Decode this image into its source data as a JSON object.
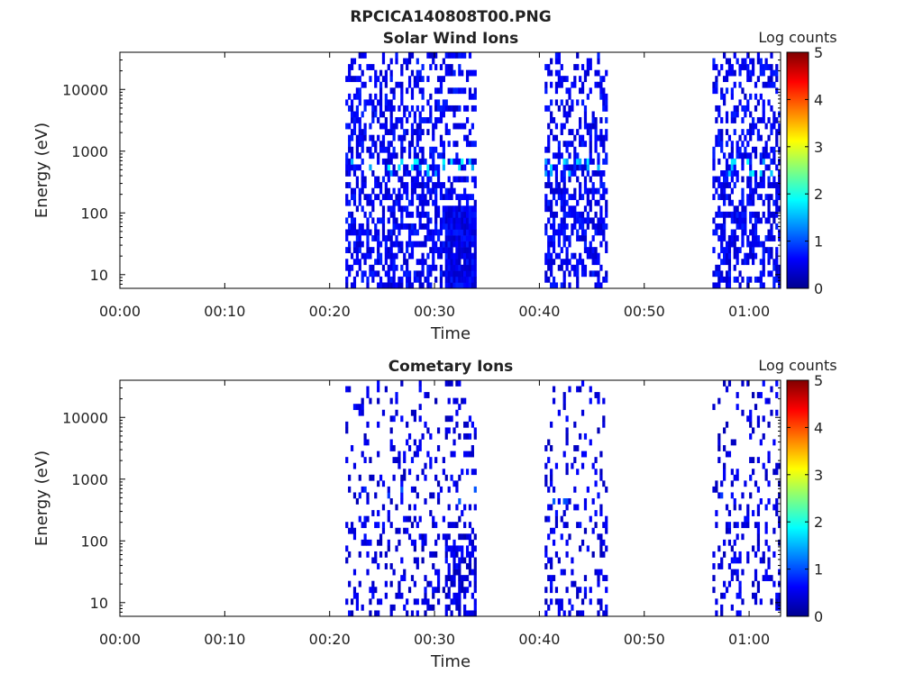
{
  "figure_title": "RPCICA140808T00.PNG",
  "chart_data": [
    {
      "type": "heatmap",
      "title": "Solar Wind Ions",
      "xlabel": "Time",
      "ylabel": "Energy (eV)",
      "x_ticks": [
        "00:00",
        "00:10",
        "00:20",
        "00:30",
        "00:40",
        "00:50",
        "01:00"
      ],
      "x_tick_minutes": [
        0,
        10,
        20,
        30,
        40,
        50,
        60
      ],
      "xlim_minutes": [
        0,
        63
      ],
      "y_scale": "log",
      "ylim": [
        6,
        40000
      ],
      "y_ticks": [
        10,
        100,
        1000,
        10000
      ],
      "y_tick_labels": [
        "10",
        "100",
        "1000",
        "10000"
      ],
      "colorbar": {
        "label": "Log counts",
        "min": 0,
        "max": 5,
        "ticks": [
          "0",
          "1",
          "2",
          "3",
          "4",
          "5"
        ]
      },
      "data_intervals_minutes": [
        [
          21.5,
          34.0
        ],
        [
          40.5,
          46.5
        ],
        [
          56.5,
          63.0
        ]
      ],
      "typical_log_counts": 0.3,
      "peak_log_counts": 1.9,
      "peak_energy_eV": 600
    },
    {
      "type": "heatmap",
      "title": "Cometary Ions",
      "xlabel": "Time",
      "ylabel": "Energy (eV)",
      "x_ticks": [
        "00:00",
        "00:10",
        "00:20",
        "00:30",
        "00:40",
        "00:50",
        "01:00"
      ],
      "x_tick_minutes": [
        0,
        10,
        20,
        30,
        40,
        50,
        60
      ],
      "xlim_minutes": [
        0,
        63
      ],
      "y_scale": "log",
      "ylim": [
        6,
        40000
      ],
      "y_ticks": [
        10,
        100,
        1000,
        10000
      ],
      "y_tick_labels": [
        "10",
        "100",
        "1000",
        "10000"
      ],
      "colorbar": {
        "label": "Log counts",
        "min": 0,
        "max": 5,
        "ticks": [
          "0",
          "1",
          "2",
          "3",
          "4",
          "5"
        ]
      },
      "data_intervals_minutes": [
        [
          21.5,
          34.0
        ],
        [
          40.5,
          46.5
        ],
        [
          56.5,
          63.0
        ]
      ],
      "typical_log_counts": 0.2,
      "peak_log_counts": 1.1,
      "peak_energy_eV": 500
    }
  ]
}
